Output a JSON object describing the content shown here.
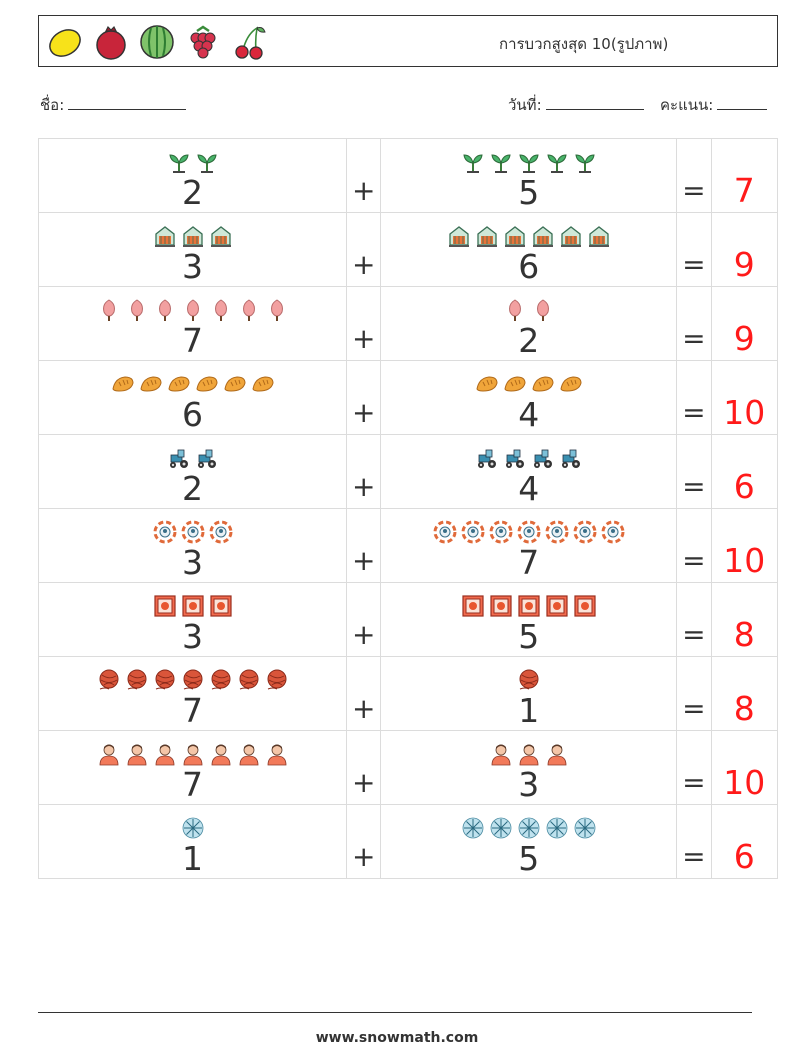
{
  "header": {
    "title": "การบวกสูงสุด 10(รูปภาพ)",
    "fruits": [
      "lemon-icon",
      "pomegranate-icon",
      "watermelon-icon",
      "raspberry-icon",
      "cherry-icon"
    ]
  },
  "fields": {
    "name_label": "ชื่อ:",
    "date_label": "วันที่:",
    "score_label": "คะแนน:"
  },
  "problems": [
    {
      "a": 2,
      "b": 5,
      "sum": 7,
      "icon": "sprout-icon"
    },
    {
      "a": 3,
      "b": 6,
      "sum": 9,
      "icon": "greenhouse-icon"
    },
    {
      "a": 7,
      "b": 2,
      "sum": 9,
      "icon": "tree-icon"
    },
    {
      "a": 6,
      "b": 4,
      "sum": 10,
      "icon": "bread-icon"
    },
    {
      "a": 2,
      "b": 4,
      "sum": 6,
      "icon": "tractor-icon"
    },
    {
      "a": 3,
      "b": 7,
      "sum": 10,
      "icon": "lifebuoy-icon"
    },
    {
      "a": 3,
      "b": 5,
      "sum": 8,
      "icon": "frame-icon"
    },
    {
      "a": 7,
      "b": 1,
      "sum": 8,
      "icon": "yarn-ball-icon"
    },
    {
      "a": 7,
      "b": 3,
      "sum": 10,
      "icon": "person-icon"
    },
    {
      "a": 1,
      "b": 5,
      "sum": 6,
      "icon": "snowflake-icon"
    }
  ],
  "symbols": {
    "plus": "+",
    "equals": "="
  },
  "footer": {
    "url": "www.snowmath.com"
  }
}
